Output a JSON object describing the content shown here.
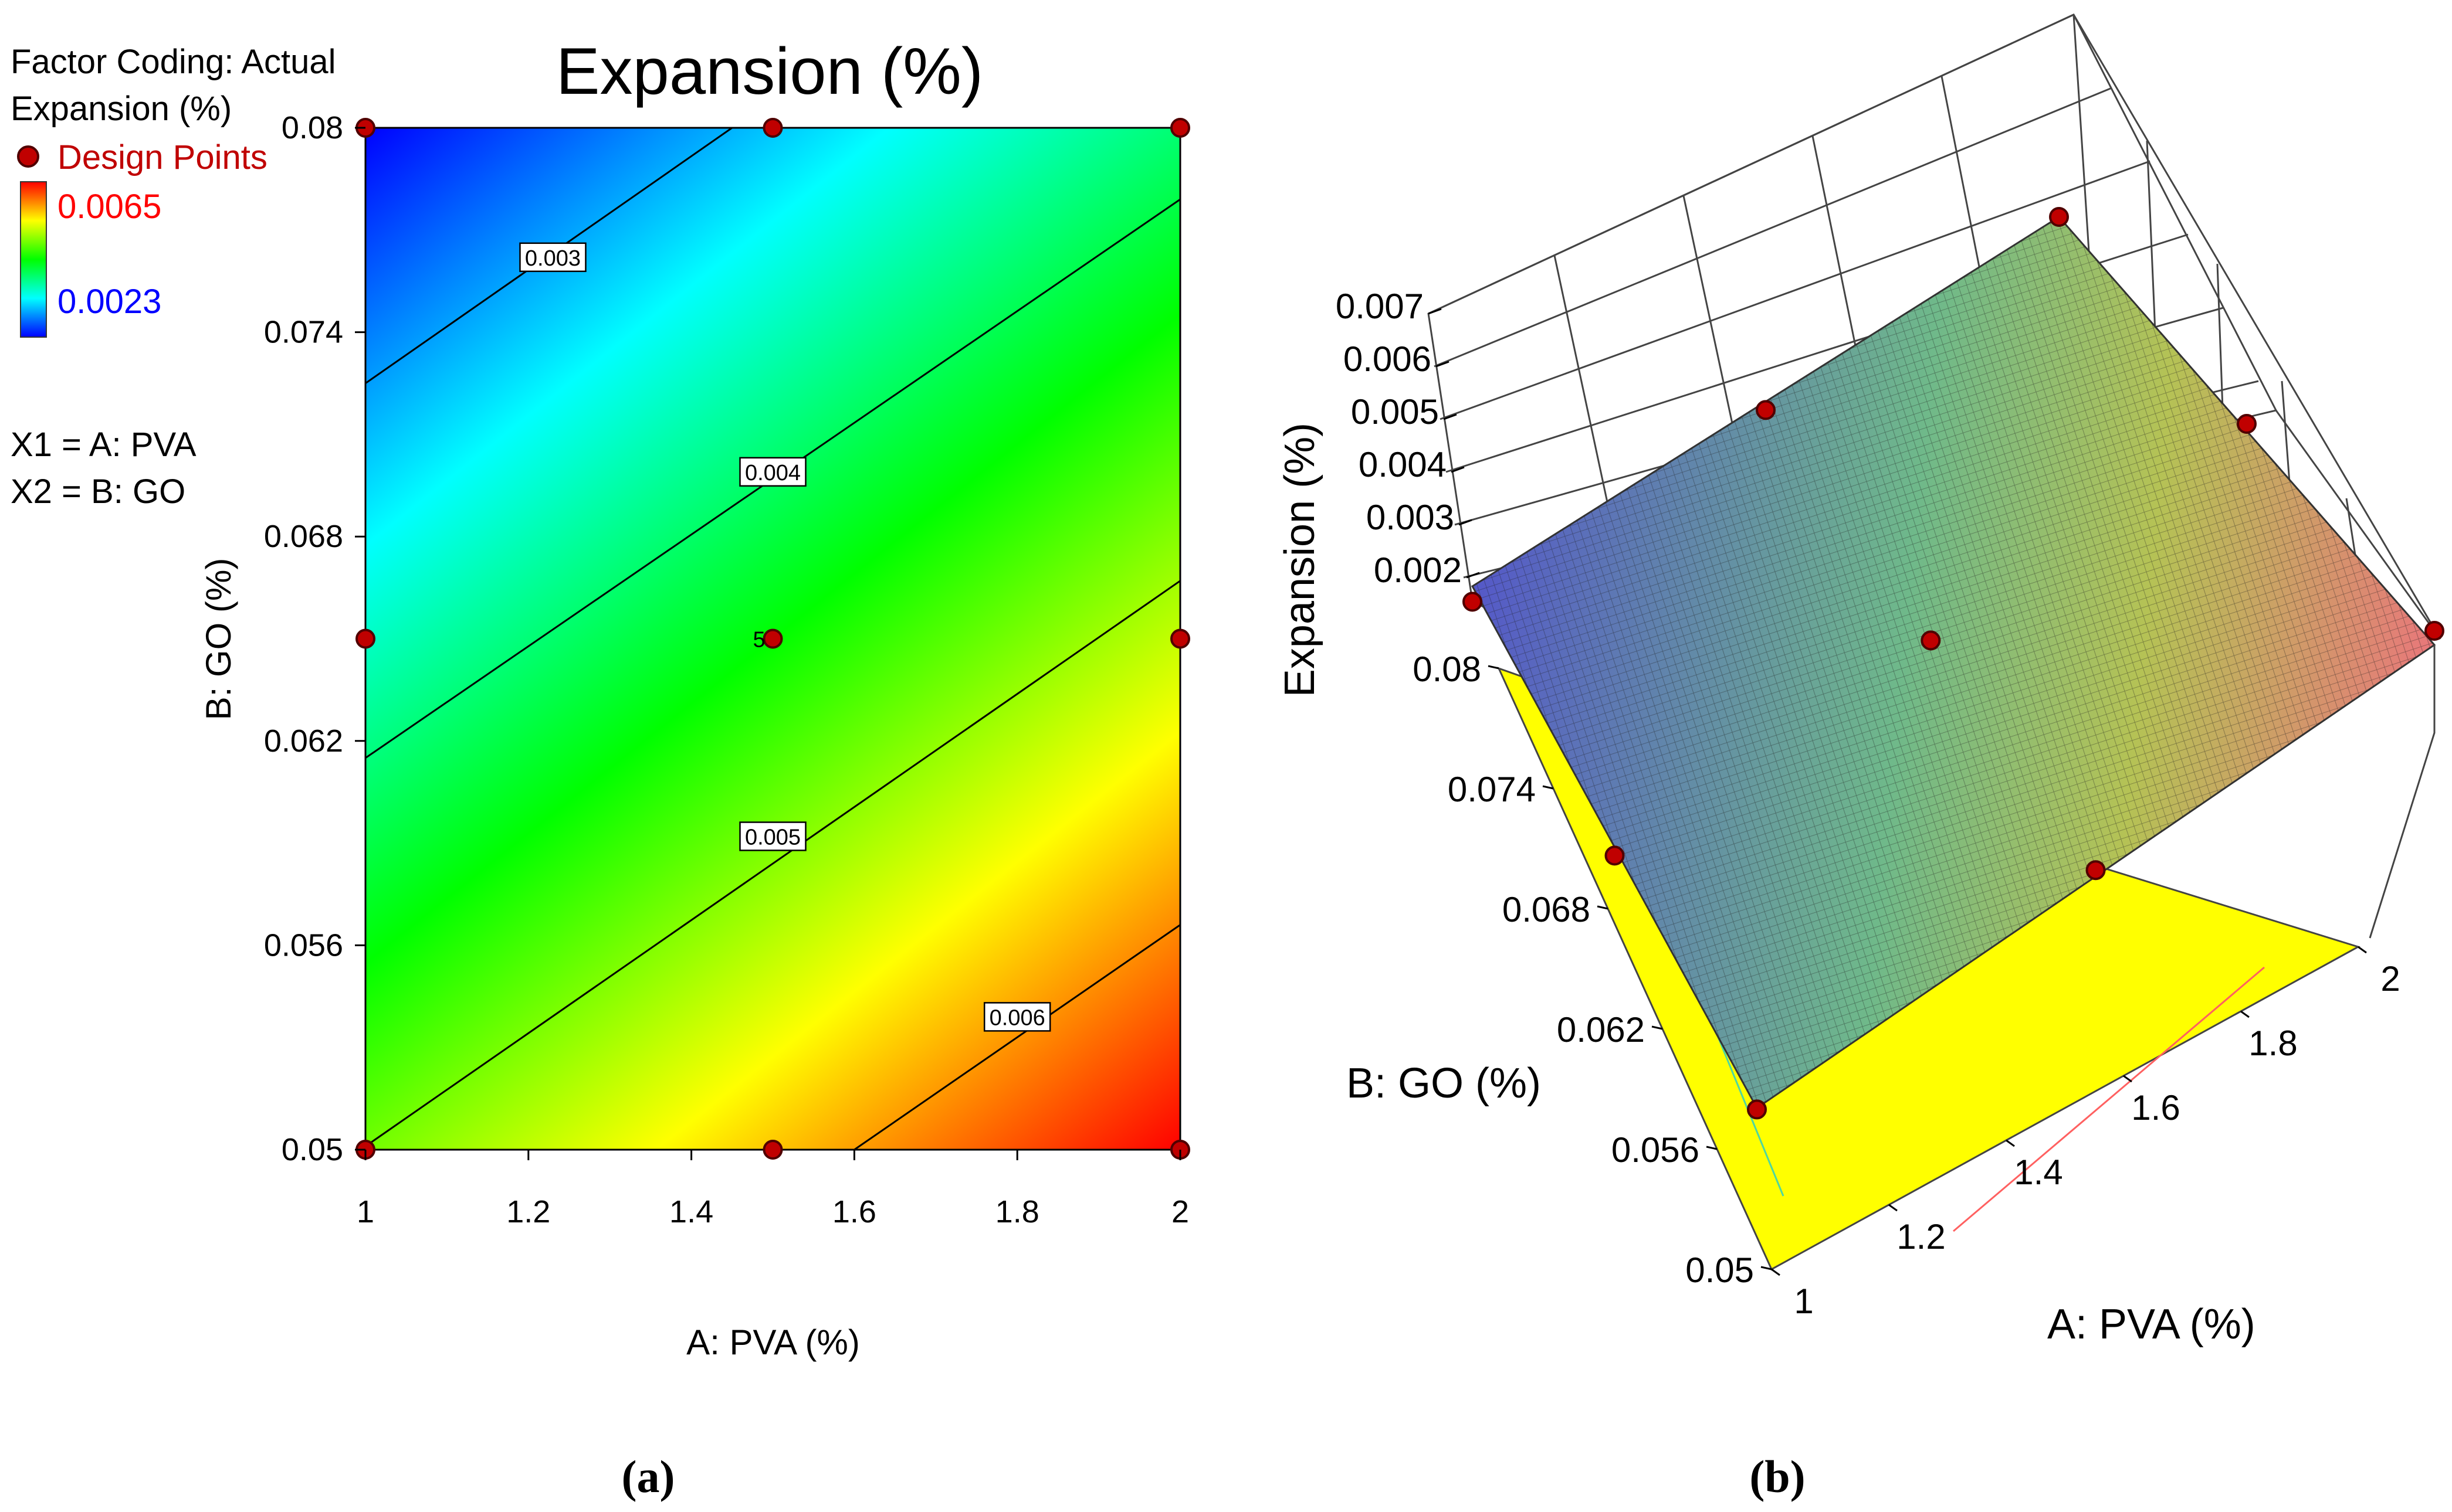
{
  "legend": {
    "coding_label": "Factor Coding: Actual",
    "response_label": "Expansion (%)",
    "design_points_label": "Design Points",
    "scale_high": "0.0065",
    "scale_low": "0.0023",
    "x1_label": "X1 = A: PVA",
    "x2_label": "X2 = B: GO"
  },
  "colors": {
    "scale_red": "#ff0000",
    "scale_yellow": "#ffff00",
    "scale_green": "#00ff00",
    "scale_cyan": "#00ffff",
    "scale_blue": "#0000ff",
    "point": "#c00000",
    "legend_red_text": "#c00000",
    "legend_blue_text": "#0000ff",
    "surface_low": "#5a5fc8",
    "surface_mid": "#8cc060",
    "surface_high": "#e08070",
    "floor": "#ffff00"
  },
  "chart_data": [
    {
      "type": "contour",
      "panel_label": "(a)",
      "title": "Expansion (%)",
      "xlabel": "A: PVA (%)",
      "ylabel": "B: GO (%)",
      "xlim": [
        1,
        2
      ],
      "ylim": [
        0.05,
        0.08
      ],
      "x_ticks": [
        1,
        1.2,
        1.4,
        1.6,
        1.8,
        2
      ],
      "x_tick_labels": [
        "1",
        "1.2",
        "1.4",
        "1.6",
        "1.8",
        "2"
      ],
      "y_ticks": [
        0.05,
        0.056,
        0.062,
        0.068,
        0.074,
        0.08
      ],
      "y_tick_labels": [
        "0.05",
        "0.056",
        "0.062",
        "0.068",
        "0.074",
        "0.08"
      ],
      "contours": [
        {
          "level": 0.003,
          "label": "0.003",
          "label_at": [
            1.23,
            0.0762
          ],
          "points": [
            [
              1,
              0.0725
            ],
            [
              1.45,
              0.08
            ]
          ]
        },
        {
          "level": 0.004,
          "label": "0.004",
          "label_at": [
            1.5,
            0.0699
          ],
          "points": [
            [
              1,
              0.0615
            ],
            [
              2,
              0.0779
            ]
          ]
        },
        {
          "level": 0.005,
          "label": "0.005",
          "label_at": [
            1.5,
            0.0592
          ],
          "points": [
            [
              1,
              0.0501
            ],
            [
              2,
              0.0667
            ]
          ]
        },
        {
          "level": 0.006,
          "label": "0.006",
          "label_at": [
            1.8,
            0.0539
          ],
          "points": [
            [
              1.6,
              0.05
            ],
            [
              2,
              0.0566
            ]
          ]
        }
      ],
      "design_points": [
        {
          "x": 1,
          "y": 0.08
        },
        {
          "x": 1.5,
          "y": 0.08
        },
        {
          "x": 2,
          "y": 0.08
        },
        {
          "x": 1,
          "y": 0.065
        },
        {
          "x": 1.5,
          "y": 0.065,
          "count": "5"
        },
        {
          "x": 2,
          "y": 0.065
        },
        {
          "x": 1,
          "y": 0.05
        },
        {
          "x": 1.5,
          "y": 0.05
        },
        {
          "x": 2,
          "y": 0.05
        }
      ]
    },
    {
      "type": "surface3d",
      "panel_label": "(b)",
      "xlabel": "A: PVA (%)",
      "ylabel": "B: GO (%)",
      "zlabel": "Expansion (%)",
      "xlim": [
        1,
        2
      ],
      "ylim": [
        0.05,
        0.08
      ],
      "zlim": [
        0.002,
        0.007
      ],
      "x_ticks": [
        "1",
        "1.2",
        "1.4",
        "1.6",
        "1.8",
        "2"
      ],
      "y_ticks": [
        "0.05",
        "0.056",
        "0.062",
        "0.068",
        "0.074",
        "0.08"
      ],
      "z_ticks": [
        "0.002",
        "0.003",
        "0.004",
        "0.005",
        "0.006",
        "0.007"
      ],
      "design_points": [
        {
          "x": 1,
          "y": 0.08,
          "z": 0.0023
        },
        {
          "x": 1.5,
          "y": 0.065,
          "z": 0.0043
        },
        {
          "x": 2,
          "y": 0.05,
          "z": 0.0065
        },
        {
          "x": 1,
          "y": 0.065,
          "z": 0.0033
        },
        {
          "x": 2,
          "y": 0.065,
          "z": 0.0055
        },
        {
          "x": 1.5,
          "y": 0.08,
          "z": 0.0033
        },
        {
          "x": 1.5,
          "y": 0.05,
          "z": 0.0054
        },
        {
          "x": 2,
          "y": 0.08,
          "z": 0.0045
        },
        {
          "x": 1,
          "y": 0.05,
          "z": 0.0043
        }
      ]
    }
  ]
}
